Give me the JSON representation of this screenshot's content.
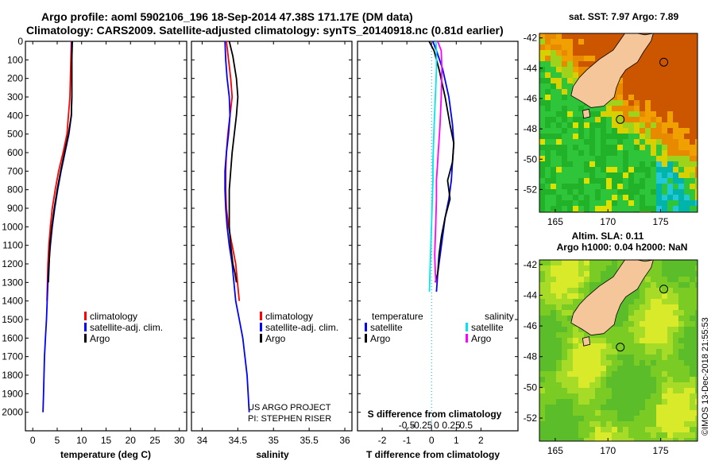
{
  "header": {
    "line1": "Argo profile: aoml 5902106_196 18-Sep-2014 47.38S 171.17E (DM data)",
    "line2": "Climatology: CARS2009. Satellite-adjusted climatology: synTS_20140918.nc (0.81d earlier)"
  },
  "credit": {
    "line1": "US ARGO PROJECT",
    "line2": "PI: STEPHEN RISER"
  },
  "watermark": "©IMOS 13-Dec-2018 21:55:53",
  "colors": {
    "climatology": "#ff0000",
    "satellite": "#0000ff",
    "argo": "#000000",
    "sat_salinity": "#00e5ee",
    "argo_salinity": "#ff00ff"
  },
  "chart_data": [
    {
      "type": "line",
      "id": "temperature-profile",
      "xlabel": "temperature (deg C)",
      "ylabel": "",
      "xlim": [
        -1.5,
        31.5
      ],
      "ylim": [
        2100,
        0
      ],
      "xticks": [
        "0",
        "5",
        "10",
        "15",
        "20",
        "25",
        "30"
      ],
      "xtick_values": [
        0,
        5,
        10,
        15,
        20,
        25,
        30
      ],
      "yticks": [
        "0",
        "100",
        "200",
        "300",
        "400",
        "500",
        "600",
        "700",
        "800",
        "900",
        "1000",
        "1100",
        "1200",
        "1300",
        "1400",
        "1500",
        "1600",
        "1700",
        "1800",
        "1900",
        "2000"
      ],
      "ytick_values": [
        0,
        100,
        200,
        300,
        400,
        500,
        600,
        700,
        800,
        900,
        1000,
        1100,
        1200,
        1300,
        1400,
        1500,
        1600,
        1700,
        1800,
        1900,
        2000
      ],
      "legend": [
        "climatology",
        "satellite-adj. clim.",
        "Argo"
      ],
      "series": [
        {
          "name": "climatology",
          "color_key": "climatology",
          "x": [
            7.9,
            7.8,
            7.6,
            7.0,
            6.2,
            5.3,
            4.6,
            4.0,
            3.6,
            3.3,
            3.1,
            3.0,
            2.9
          ],
          "y": [
            0,
            100,
            300,
            500,
            600,
            700,
            800,
            900,
            1000,
            1100,
            1200,
            1300,
            1400
          ]
        },
        {
          "name": "satellite-adj. clim.",
          "color_key": "satellite",
          "x": [
            8.0,
            8.0,
            8.0,
            7.9,
            7.4,
            6.6,
            5.8,
            5.1,
            4.5,
            4.0,
            3.6,
            3.3,
            3.1,
            2.8,
            2.6,
            2.4,
            2.3,
            2.2,
            2.1
          ],
          "y": [
            0,
            100,
            300,
            400,
            500,
            600,
            700,
            800,
            900,
            1000,
            1100,
            1200,
            1300,
            1500,
            1600,
            1700,
            1800,
            1900,
            2000
          ]
        },
        {
          "name": "Argo",
          "color_key": "argo",
          "x": [
            8.1,
            8.0,
            8.0,
            7.9,
            7.3,
            6.5,
            5.7,
            5.0,
            4.4,
            3.9,
            3.5,
            3.2
          ],
          "y": [
            0,
            100,
            300,
            400,
            500,
            600,
            700,
            800,
            900,
            1000,
            1100,
            1300
          ]
        }
      ]
    },
    {
      "type": "line",
      "id": "salinity-profile",
      "xlabel": "salinity",
      "xlim": [
        33.85,
        36.1
      ],
      "ylim": [
        2100,
        0
      ],
      "xticks": [
        "34",
        "34.5",
        "35",
        "35.5",
        "36"
      ],
      "xtick_values": [
        34,
        34.5,
        35,
        35.5,
        36
      ],
      "legend": [
        "climatology",
        "satellite-adj. clim.",
        "Argo"
      ],
      "series": [
        {
          "name": "climatology",
          "color_key": "climatology",
          "x": [
            34.34,
            34.37,
            34.4,
            34.42,
            34.39,
            34.36,
            34.34,
            34.33,
            34.33,
            34.34,
            34.37,
            34.42,
            34.47,
            34.52
          ],
          "y": [
            0,
            100,
            200,
            300,
            400,
            500,
            600,
            700,
            800,
            900,
            1000,
            1100,
            1200,
            1400
          ]
        },
        {
          "name": "satellite-adj. clim.",
          "color_key": "satellite",
          "x": [
            34.32,
            34.33,
            34.35,
            34.38,
            34.39,
            34.37,
            34.34,
            34.32,
            34.32,
            34.33,
            34.35,
            34.38,
            34.42,
            34.47,
            34.52,
            34.57,
            34.6,
            34.63,
            34.66
          ],
          "y": [
            0,
            100,
            200,
            300,
            400,
            500,
            600,
            700,
            800,
            900,
            1000,
            1100,
            1200,
            1400,
            1500,
            1600,
            1700,
            1800,
            2000
          ]
        },
        {
          "name": "Argo",
          "color_key": "argo",
          "x": [
            34.38,
            34.43,
            34.48,
            34.5,
            34.48,
            34.45,
            34.42,
            34.4,
            34.38,
            34.38,
            34.38,
            34.4,
            34.43,
            34.46,
            34.48
          ],
          "y": [
            0,
            80,
            200,
            300,
            400,
            500,
            600,
            700,
            800,
            900,
            1000,
            1100,
            1200,
            1250,
            1300
          ]
        }
      ]
    },
    {
      "type": "line",
      "id": "difference-profile",
      "xlabel": "T difference from climatology",
      "xlabel_top": "S difference from climatology",
      "xlim": [
        -3,
        3.5
      ],
      "ylim": [
        2100,
        0
      ],
      "xticks": [
        "-2",
        "-1",
        "0",
        "1",
        "2"
      ],
      "xtick_values": [
        -2,
        -1,
        0,
        1,
        2
      ],
      "sticks": [
        "-0.5",
        "-0.25",
        "0",
        "0.25",
        "0.5"
      ],
      "stick_values": [
        -0.5,
        -0.25,
        0,
        0.25,
        0.5
      ],
      "legend_left_title": "temperature",
      "legend_right_title": "salinity",
      "legend_left": [
        "satellite",
        "Argo"
      ],
      "legend_right": [
        "satellite",
        "Argo"
      ],
      "series": [
        {
          "name": "T satellite",
          "color_key": "satellite",
          "units": "degC",
          "x": [
            0.05,
            0.2,
            0.45,
            0.7,
            0.85,
            0.9,
            0.85,
            0.8,
            0.7,
            0.55,
            0.45,
            0.35,
            0.25,
            0.2
          ],
          "y": [
            0,
            50,
            150,
            300,
            450,
            550,
            650,
            750,
            850,
            950,
            1050,
            1150,
            1250,
            1350
          ]
        },
        {
          "name": "T Argo",
          "color_key": "argo",
          "units": "degC",
          "x": [
            -0.1,
            0.1,
            0.3,
            0.55,
            0.75,
            0.9,
            0.85,
            0.65,
            0.75,
            0.55,
            0.4,
            0.3,
            0.25,
            0.15
          ],
          "y": [
            0,
            50,
            150,
            300,
            450,
            550,
            650,
            750,
            850,
            950,
            1050,
            1150,
            1250,
            1300
          ]
        },
        {
          "name": "S satellite",
          "color_key": "sat_salinity",
          "units": "psu",
          "x": [
            -0.01,
            0.0,
            0.0,
            -0.02,
            -0.04,
            -0.05,
            -0.06,
            -0.06,
            -0.07,
            -0.08,
            -0.09,
            -0.1,
            -0.11,
            -0.12
          ],
          "y": [
            0,
            50,
            150,
            300,
            450,
            550,
            650,
            750,
            850,
            950,
            1050,
            1150,
            1250,
            1350
          ]
        },
        {
          "name": "S Argo",
          "color_key": "argo_salinity",
          "units": "psu",
          "x": [
            0.02,
            0.08,
            0.09,
            0.08,
            0.06,
            0.04,
            0.02,
            0.0,
            0.0,
            -0.01,
            -0.02,
            -0.03,
            -0.02,
            -0.01
          ],
          "y": [
            0,
            50,
            150,
            300,
            450,
            550,
            650,
            750,
            850,
            950,
            1050,
            1150,
            1250,
            1300
          ]
        }
      ]
    },
    {
      "type": "heatmap",
      "id": "sst-map",
      "title": "sat. SST: 7.97  Argo: 7.89",
      "lon_ticks": [
        "165",
        "170",
        "175"
      ],
      "lon_tick_values": [
        165,
        170,
        175
      ],
      "lat_ticks": [
        "-42",
        "-44",
        "-46",
        "-48",
        "-50",
        "-52"
      ],
      "lat_tick_values": [
        -42,
        -44,
        -46,
        -48,
        -50,
        -52
      ],
      "xlim": [
        163.5,
        178.5
      ],
      "ylim": [
        -53.5,
        -41.7
      ],
      "float_position": [
        171.17,
        -47.38
      ]
    },
    {
      "type": "heatmap",
      "id": "sla-map",
      "title_line1": "Altim. SLA: 0.11",
      "title_line2": "Argo h1000: 0.04 h2000: NaN",
      "lon_ticks": [
        "165",
        "170",
        "175"
      ],
      "lon_tick_values": [
        165,
        170,
        175
      ],
      "lat_ticks": [
        "-42",
        "-44",
        "-46",
        "-48",
        "-50",
        "-52"
      ],
      "lat_tick_values": [
        -42,
        -44,
        -46,
        -48,
        -50,
        -52
      ],
      "xlim": [
        163.5,
        178.5
      ],
      "ylim": [
        -53.5,
        -41.7
      ],
      "float_position": [
        171.17,
        -47.38
      ]
    }
  ]
}
